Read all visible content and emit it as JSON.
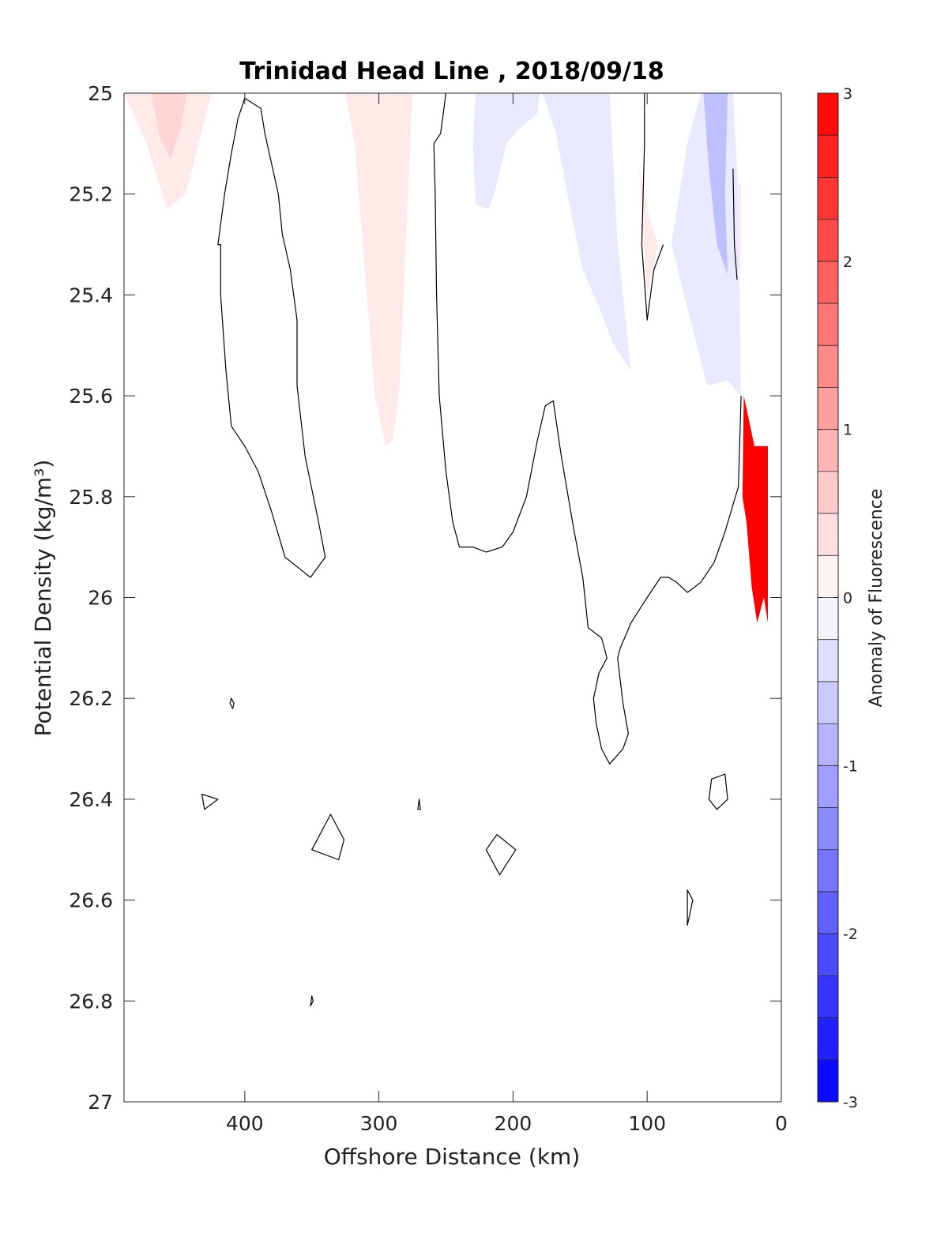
{
  "chart_data": {
    "type": "heatmap",
    "title": "Trinidad Head Line , 2018/09/18",
    "xlabel": "Offshore Distance (km)",
    "ylabel": "Potential Density (kg/m³)",
    "xlim": [
      490,
      0
    ],
    "ylim": [
      25,
      27
    ],
    "x_reversed": true,
    "y_reversed": true,
    "xticks": [
      {
        "value": 400,
        "label": "400"
      },
      {
        "value": 300,
        "label": "300"
      },
      {
        "value": 200,
        "label": "200"
      },
      {
        "value": 100,
        "label": "100"
      },
      {
        "value": 0,
        "label": "0"
      }
    ],
    "yticks": [
      {
        "value": 25,
        "label": "25"
      },
      {
        "value": 25.2,
        "label": "25.2"
      },
      {
        "value": 25.4,
        "label": "25.4"
      },
      {
        "value": 25.6,
        "label": "25.6"
      },
      {
        "value": 25.8,
        "label": "25.8"
      },
      {
        "value": 26,
        "label": "26"
      },
      {
        "value": 26.2,
        "label": "26.2"
      },
      {
        "value": 26.4,
        "label": "26.4"
      },
      {
        "value": 26.6,
        "label": "26.6"
      },
      {
        "value": 26.8,
        "label": "26.8"
      },
      {
        "value": 27,
        "label": "27"
      }
    ],
    "grid": false,
    "colorbar": {
      "label": "Anomaly of Fluorescence",
      "range": [
        -3,
        3
      ],
      "levels": 24,
      "low_color": "#0000ff",
      "mid_color": "#ffffff",
      "high_color": "#ff0000",
      "ticks": [
        {
          "value": 3,
          "label": "3"
        },
        {
          "value": 2,
          "label": "2"
        },
        {
          "value": 1,
          "label": "1"
        },
        {
          "value": 0,
          "label": "0"
        },
        {
          "value": -1,
          "label": "-1"
        },
        {
          "value": -2,
          "label": "-2"
        },
        {
          "value": -3,
          "label": "-3"
        }
      ]
    },
    "filled_regions": [
      {
        "name": "pos-anomaly-offshore",
        "level": 0.25,
        "points": [
          [
            490,
            25
          ],
          [
            425,
            25
          ],
          [
            444,
            25.2
          ],
          [
            458,
            25.23
          ],
          [
            473,
            25.1
          ]
        ]
      },
      {
        "name": "pos-anomaly-offshore-core",
        "level": 0.5,
        "points": [
          [
            470,
            25
          ],
          [
            443,
            25
          ],
          [
            448,
            25.07
          ],
          [
            455,
            25.13
          ],
          [
            463,
            25.09
          ]
        ]
      },
      {
        "name": "pos-anomaly-300km",
        "level": 0.25,
        "points": [
          [
            325,
            25
          ],
          [
            275,
            25
          ],
          [
            280,
            25.3
          ],
          [
            285,
            25.6
          ],
          [
            290,
            25.69
          ],
          [
            295,
            25.7
          ],
          [
            303,
            25.6
          ],
          [
            312,
            25.3
          ],
          [
            318,
            25.1
          ]
        ]
      },
      {
        "name": "neg-anomaly-220km",
        "level": -0.25,
        "points": [
          [
            228,
            25
          ],
          [
            180,
            25
          ],
          [
            182,
            25.04
          ],
          [
            195,
            25.07
          ],
          [
            205,
            25.1
          ],
          [
            213,
            25.19
          ],
          [
            218,
            25.23
          ],
          [
            228,
            25.22
          ],
          [
            230,
            25.1
          ]
        ]
      },
      {
        "name": "neg-anomaly-150km",
        "level": -0.25,
        "points": [
          [
            178,
            25
          ],
          [
            128,
            25
          ],
          [
            122,
            25.3
          ],
          [
            112,
            25.55
          ],
          [
            125,
            25.5
          ],
          [
            135,
            25.43
          ],
          [
            148,
            25.35
          ],
          [
            158,
            25.22
          ],
          [
            168,
            25.08
          ]
        ]
      },
      {
        "name": "pos-anomaly-100km",
        "level": 0.25,
        "points": [
          [
            106,
            25.15
          ],
          [
            100,
            25.4
          ],
          [
            92,
            25.3
          ],
          [
            98,
            25.25
          ]
        ]
      },
      {
        "name": "neg-anomaly-nearshore",
        "level": -0.25,
        "points": [
          [
            60,
            25
          ],
          [
            36,
            25
          ],
          [
            32,
            25.2
          ],
          [
            30,
            25.6
          ],
          [
            40,
            25.57
          ],
          [
            55,
            25.58
          ],
          [
            66,
            25.47
          ],
          [
            82,
            25.3
          ],
          [
            70,
            25.1
          ]
        ]
      },
      {
        "name": "neg-anomaly-nearshore-core",
        "level": -0.75,
        "points": [
          [
            58,
            25
          ],
          [
            40,
            25
          ],
          [
            42,
            25.2
          ],
          [
            40,
            25.36
          ],
          [
            48,
            25.3
          ],
          [
            54,
            25.15
          ]
        ]
      },
      {
        "name": "pos-anomaly-coast-strip",
        "level": 0.25,
        "points": [
          [
            32,
            25.18
          ],
          [
            30,
            25.18
          ],
          [
            30,
            25.32
          ],
          [
            31,
            25.35
          ]
        ]
      },
      {
        "name": "pos-anomaly-coastal-bloom",
        "level": 3,
        "points": [
          [
            28,
            25.6
          ],
          [
            20,
            25.7
          ],
          [
            10,
            25.7
          ],
          [
            10,
            26.05
          ],
          [
            13,
            26.0
          ],
          [
            18,
            26.05
          ],
          [
            22,
            25.98
          ],
          [
            26,
            25.85
          ],
          [
            29,
            25.8
          ]
        ]
      }
    ],
    "contours": [
      {
        "name": "zero-contour-offshore",
        "points": [
          [
            418,
            25.3
          ],
          [
            418,
            25.4
          ],
          [
            414,
            25.55
          ],
          [
            410,
            25.66
          ],
          [
            400,
            25.7
          ],
          [
            390,
            25.75
          ],
          [
            380,
            25.83
          ],
          [
            370,
            25.92
          ],
          [
            351,
            25.96
          ],
          [
            340,
            25.92
          ],
          [
            345,
            25.85
          ],
          [
            355,
            25.72
          ],
          [
            361,
            25.58
          ],
          [
            361,
            25.45
          ],
          [
            366,
            25.35
          ],
          [
            372,
            25.28
          ],
          [
            375,
            25.2
          ],
          [
            380,
            25.14
          ],
          [
            385,
            25.08
          ],
          [
            388,
            25.03
          ],
          [
            400,
            25.01
          ],
          [
            405,
            25.05
          ],
          [
            410,
            25.12
          ],
          [
            415,
            25.2
          ],
          [
            420,
            25.3
          ]
        ],
        "closed": true
      },
      {
        "name": "zero-contour-mid",
        "points": [
          [
            250,
            25
          ],
          [
            254,
            25.08
          ],
          [
            259,
            25.1
          ],
          [
            258,
            25.2
          ],
          [
            257,
            25.4
          ],
          [
            255,
            25.6
          ],
          [
            250,
            25.75
          ],
          [
            245,
            25.85
          ],
          [
            240,
            25.9
          ],
          [
            230,
            25.9
          ],
          [
            220,
            25.91
          ],
          [
            208,
            25.9
          ],
          [
            200,
            25.87
          ],
          [
            190,
            25.8
          ],
          [
            182,
            25.69
          ],
          [
            176,
            25.62
          ],
          [
            170,
            25.61
          ],
          [
            164,
            25.72
          ],
          [
            155,
            25.86
          ],
          [
            148,
            25.96
          ],
          [
            144,
            26.06
          ],
          [
            134,
            26.08
          ],
          [
            130,
            26.12
          ],
          [
            136,
            26.15
          ],
          [
            140,
            26.2
          ],
          [
            138,
            26.25
          ],
          [
            134,
            26.3
          ],
          [
            128,
            26.33
          ],
          [
            118,
            26.3
          ],
          [
            114,
            26.27
          ],
          [
            118,
            26.21
          ],
          [
            122,
            26.12
          ],
          [
            120,
            26.1
          ],
          [
            112,
            26.05
          ],
          [
            100,
            26.0
          ],
          [
            90,
            25.96
          ],
          [
            84,
            25.96
          ],
          [
            78,
            25.97
          ],
          [
            70,
            25.99
          ],
          [
            60,
            25.97
          ],
          [
            50,
            25.93
          ],
          [
            42,
            25.87
          ],
          [
            32,
            25.78
          ],
          [
            30,
            25.6
          ]
        ]
      },
      {
        "name": "zero-contour-nearshore",
        "points": [
          [
            102,
            25
          ],
          [
            102,
            25.1
          ],
          [
            104,
            25.3
          ],
          [
            100,
            25.45
          ],
          [
            95,
            25.35
          ],
          [
            88,
            25.3
          ]
        ]
      },
      {
        "name": "zero-contour-coast",
        "points": [
          [
            36,
            25.15
          ],
          [
            35,
            25.3
          ],
          [
            33,
            25.37
          ]
        ]
      },
      {
        "name": "small-contour-1",
        "points": [
          [
            410,
            26.2
          ],
          [
            408,
            26.21
          ],
          [
            409,
            26.22
          ],
          [
            411,
            26.21
          ]
        ],
        "closed": true
      },
      {
        "name": "small-contour-2",
        "points": [
          [
            432,
            26.39
          ],
          [
            420,
            26.4
          ],
          [
            430,
            26.42
          ]
        ],
        "closed": true
      },
      {
        "name": "small-contour-3",
        "points": [
          [
            270,
            26.4
          ],
          [
            269,
            26.42
          ],
          [
            271,
            26.42
          ]
        ],
        "closed": true
      },
      {
        "name": "small-contour-4",
        "points": [
          [
            336,
            26.43
          ],
          [
            350,
            26.5
          ],
          [
            330,
            26.52
          ],
          [
            326,
            26.48
          ]
        ],
        "closed": true
      },
      {
        "name": "small-contour-5",
        "points": [
          [
            212,
            26.47
          ],
          [
            220,
            26.5
          ],
          [
            210,
            26.55
          ],
          [
            198,
            26.5
          ]
        ],
        "closed": true
      },
      {
        "name": "small-contour-6",
        "points": [
          [
            42,
            26.35
          ],
          [
            52,
            26.36
          ],
          [
            54,
            26.4
          ],
          [
            48,
            26.42
          ],
          [
            40,
            26.4
          ]
        ],
        "closed": true
      },
      {
        "name": "small-contour-7",
        "points": [
          [
            70,
            26.58
          ],
          [
            66,
            26.6
          ],
          [
            70,
            26.65
          ]
        ],
        "closed": true
      },
      {
        "name": "small-contour-8",
        "points": [
          [
            350,
            26.79
          ],
          [
            349,
            26.8
          ],
          [
            351,
            26.81
          ]
        ],
        "closed": true
      }
    ]
  }
}
